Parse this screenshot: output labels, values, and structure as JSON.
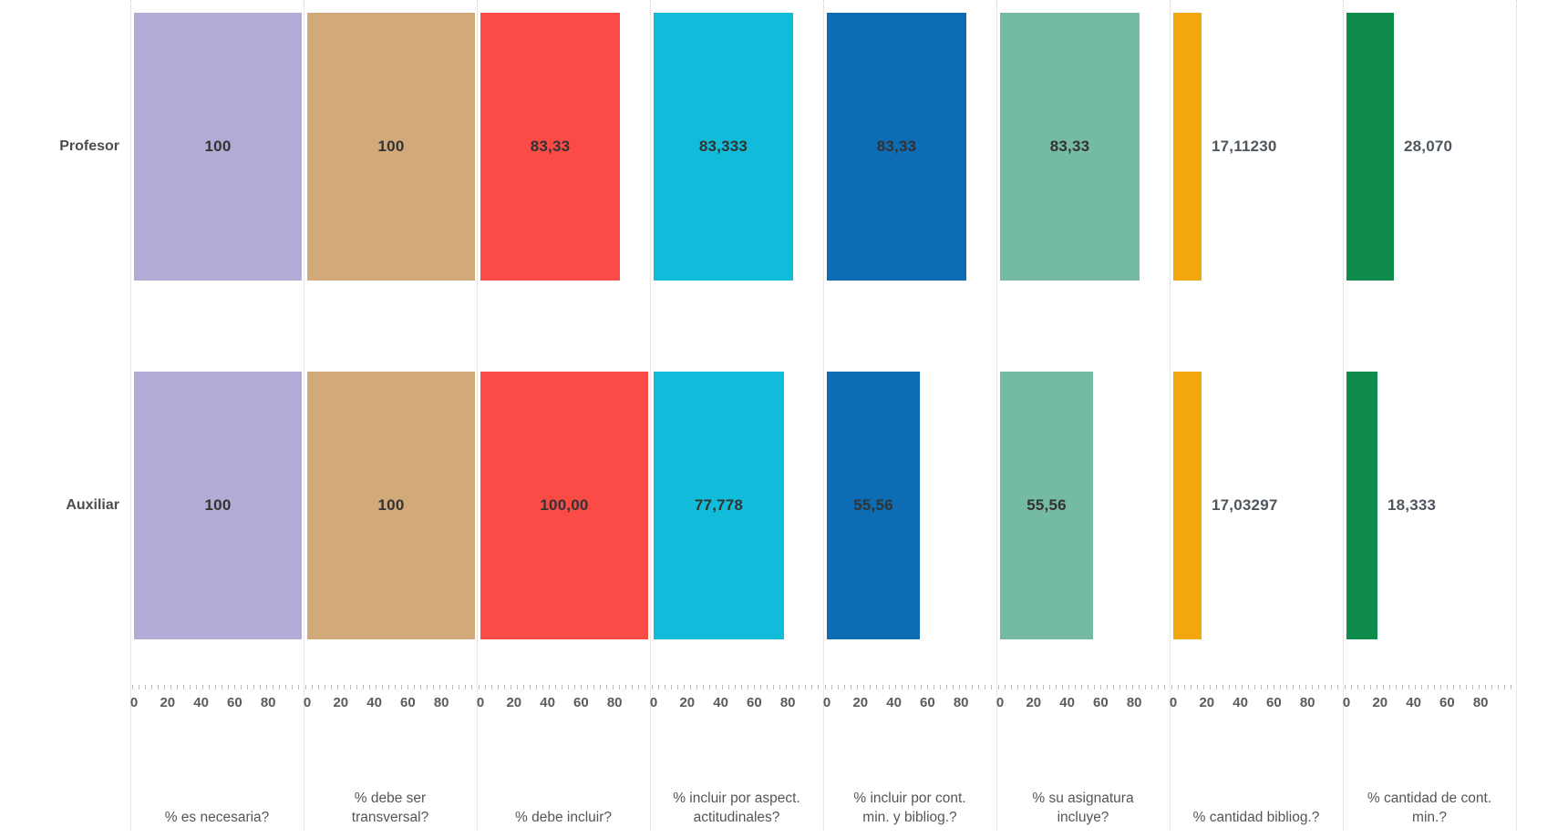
{
  "chart_data": {
    "type": "bar",
    "orientation": "horizontal",
    "layout": "trellis-small-multiples",
    "grid": "off",
    "legend": "none",
    "rows": [
      "Profesor",
      "Auxiliar"
    ],
    "axis": {
      "range": [
        0,
        100
      ],
      "ticks": [
        0,
        20,
        40,
        60,
        80
      ],
      "tick_labels": [
        "0",
        "20",
        "40",
        "60",
        "80"
      ]
    },
    "panels": [
      {
        "label": "% es necesaria?",
        "color": "#b2abd5",
        "values": [
          100,
          100
        ],
        "value_labels": [
          "100",
          "100"
        ]
      },
      {
        "label": "% debe ser\ntransversal?",
        "color": "#d2a979",
        "values": [
          100,
          100
        ],
        "value_labels": [
          "100",
          "100"
        ]
      },
      {
        "label": "% debe incluir?",
        "color": "#fa4b47",
        "values": [
          83.33,
          100.0
        ],
        "value_labels": [
          "83,33",
          "100,00"
        ]
      },
      {
        "label": "% incluir por aspect.\nactitudinales?",
        "color": "#10bcd9",
        "values": [
          83.333,
          77.778
        ],
        "value_labels": [
          "83,333",
          "77,778"
        ]
      },
      {
        "label": "% incluir por cont.\nmin. y bibliog.?",
        "color": "#0d6cb3",
        "values": [
          83.33,
          55.56
        ],
        "value_labels": [
          "83,33",
          "55,56"
        ]
      },
      {
        "label": "% su asignatura\nincluye?",
        "color": "#75bba3",
        "values": [
          83.33,
          55.56
        ],
        "value_labels": [
          "83,33",
          "55,56"
        ]
      },
      {
        "label": "% cantidad bibliog.?",
        "color": "#f2a80c",
        "values": [
          17.1123,
          17.03297
        ],
        "value_labels": [
          "17,11230",
          "17,03297"
        ]
      },
      {
        "label": "% cantidad de cont.\nmin.?",
        "color": "#0f8b4b",
        "values": [
          28.07,
          18.333
        ],
        "value_labels": [
          "28,070",
          "18,333"
        ]
      }
    ]
  }
}
